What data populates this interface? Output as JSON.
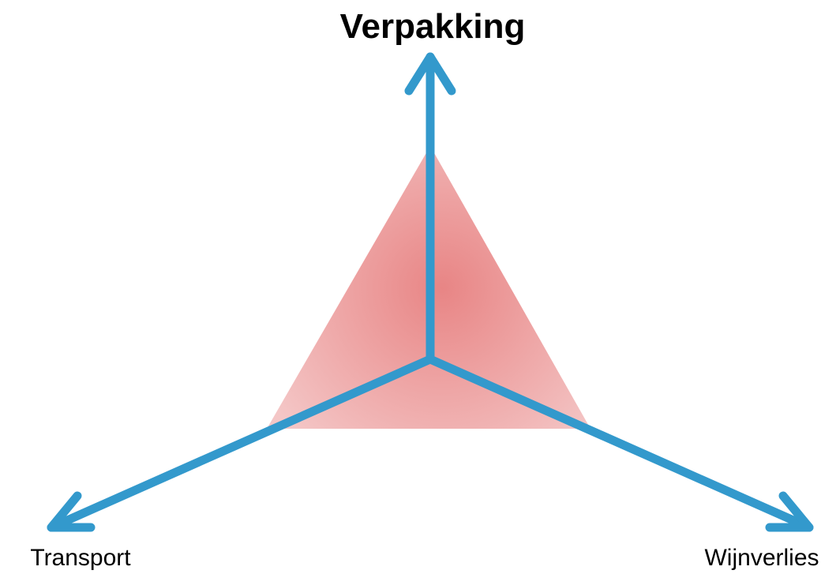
{
  "axes": [
    {
      "label": "Verpakking"
    },
    {
      "label": "Transport"
    },
    {
      "label": "Wijnverlies"
    }
  ]
}
